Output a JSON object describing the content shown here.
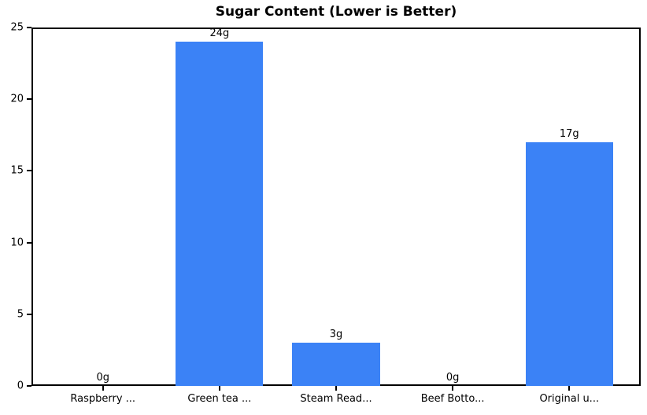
{
  "chart_data": {
    "type": "bar",
    "title": "Sugar Content (Lower is Better)",
    "categories": [
      "Raspberry ...",
      "Green tea ...",
      "Steam Read...",
      "Beef Botto...",
      "Original u..."
    ],
    "values": [
      0,
      24,
      3,
      0,
      17
    ],
    "bar_labels": [
      "0g",
      "24g",
      "3g",
      "0g",
      "17g"
    ],
    "xlabel": "",
    "ylabel": "",
    "ylim": [
      0,
      25
    ],
    "yticks": [
      0,
      5,
      10,
      15,
      20,
      25
    ],
    "grid": false,
    "legend_position": "none",
    "bar_color": "#3b82f6",
    "spine_color": "#000000",
    "text_color": "#000000",
    "background_color": "#ffffff",
    "bar_width_fraction": 0.75
  }
}
